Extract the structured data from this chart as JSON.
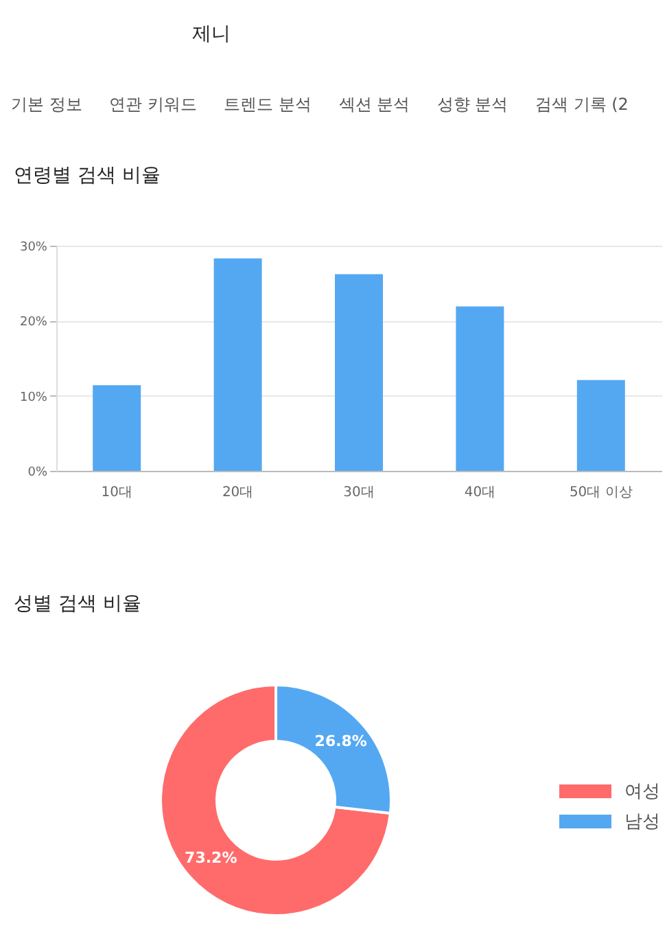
{
  "chart_data": [
    {
      "type": "other",
      "annotations": [
        "제니",
        "기본 정보",
        "연관 키워드",
        "트렌드 분석",
        "섹션 분석",
        "성향 분석",
        "검색 기록 (2"
      ]
    },
    {
      "type": "bar",
      "title": "연령별 검색 비율",
      "categories": [
        "10대",
        "20대",
        "30대",
        "40대",
        "50대 이상"
      ],
      "values": [
        11.4,
        28.3,
        26.2,
        21.9,
        12.1
      ],
      "color": "#54a8f2",
      "ylim": [
        0,
        30
      ],
      "yticks": [
        {
          "value": 0,
          "label": "0%"
        },
        {
          "value": 10,
          "label": "10%"
        },
        {
          "value": 20,
          "label": "20%"
        },
        {
          "value": 30,
          "label": "30%"
        }
      ],
      "grid": "y"
    },
    {
      "type": "donut",
      "title": "성별 검색 비율",
      "categories": [
        "여성",
        "남성"
      ],
      "values": [
        73.2,
        26.8
      ],
      "colors": [
        "#ff6b6b",
        "#54a8f2"
      ],
      "value_labels": [
        "73.2%",
        "26.8%"
      ],
      "legend": "right"
    }
  ]
}
